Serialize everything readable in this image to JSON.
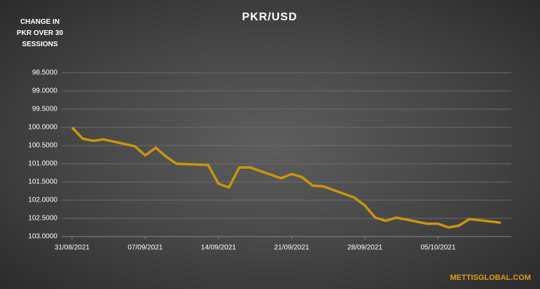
{
  "chart_data": {
    "type": "line",
    "title": "PKR/USD",
    "y_label": "CHANGE IN PKR OVER 30 SESSIONS",
    "source": "METTISGLOBAL.COM",
    "x": [
      "31/08/2021",
      "01/09/2021",
      "02/09/2021",
      "03/09/2021",
      "06/09/2021",
      "07/09/2021",
      "08/09/2021",
      "09/09/2021",
      "10/09/2021",
      "13/09/2021",
      "14/09/2021",
      "15/09/2021",
      "16/09/2021",
      "17/09/2021",
      "20/09/2021",
      "21/09/2021",
      "22/09/2021",
      "23/09/2021",
      "24/09/2021",
      "27/09/2021",
      "28/09/2021",
      "29/09/2021",
      "30/09/2021",
      "01/10/2021",
      "04/10/2021",
      "05/10/2021",
      "06/10/2021",
      "07/10/2021",
      "08/10/2021",
      "11/10/2021"
    ],
    "series": [
      {
        "name": "PKR/USD",
        "color": "#c9960c",
        "values": [
          100.0,
          100.31,
          100.37,
          100.33,
          100.52,
          100.77,
          100.56,
          100.81,
          101.0,
          101.03,
          101.55,
          101.65,
          101.1,
          101.1,
          101.4,
          101.28,
          101.37,
          101.6,
          101.62,
          101.93,
          102.15,
          102.48,
          102.57,
          102.48,
          102.65,
          102.65,
          102.75,
          102.7,
          102.52,
          102.62
        ]
      }
    ],
    "xlim": [
      "30/08/2021",
      "12/10/2021"
    ],
    "xticks": [
      "31/08/2021",
      "07/09/2021",
      "14/09/2021",
      "21/09/2021",
      "28/09/2021",
      "05/10/2021"
    ],
    "ylim": [
      103.0,
      98.5
    ],
    "yticks": [
      {
        "value": 98.5,
        "label": "98.5000"
      },
      {
        "value": 99.0,
        "label": "99.0000"
      },
      {
        "value": 99.5,
        "label": "99.5000"
      },
      {
        "value": 100.0,
        "label": "100.0000"
      },
      {
        "value": 100.5,
        "label": "100.5000"
      },
      {
        "value": 101.0,
        "label": "101.0000"
      },
      {
        "value": 101.5,
        "label": "101.5000"
      },
      {
        "value": 102.0,
        "label": "102.0000"
      },
      {
        "value": 102.5,
        "label": "102.5000"
      },
      {
        "value": 103.0,
        "label": "103.0000"
      }
    ],
    "grid": true
  }
}
